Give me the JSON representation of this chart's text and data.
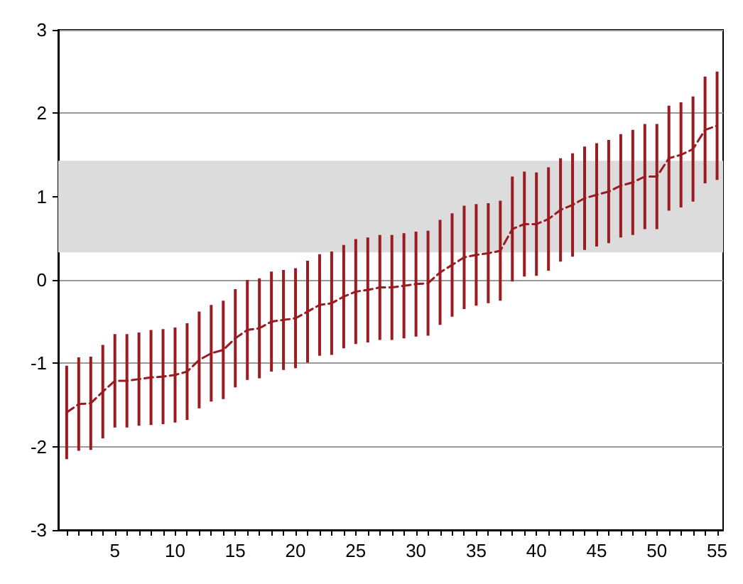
{
  "chart_data": {
    "type": "line",
    "x": [
      1,
      2,
      3,
      4,
      5,
      6,
      7,
      8,
      9,
      10,
      11,
      12,
      13,
      14,
      15,
      16,
      17,
      18,
      19,
      20,
      21,
      22,
      23,
      24,
      25,
      26,
      27,
      28,
      29,
      30,
      31,
      32,
      33,
      34,
      35,
      36,
      37,
      38,
      39,
      40,
      41,
      42,
      43,
      44,
      45,
      46,
      47,
      48,
      49,
      50,
      51,
      52,
      53,
      54,
      55
    ],
    "series": [
      {
        "color": "#9b1b22",
        "values": [
          -1.59,
          -1.49,
          -1.48,
          -1.34,
          -1.21,
          -1.21,
          -1.19,
          -1.17,
          -1.16,
          -1.14,
          -1.1,
          -0.96,
          -0.88,
          -0.84,
          -0.7,
          -0.6,
          -0.58,
          -0.5,
          -0.48,
          -0.46,
          -0.38,
          -0.3,
          -0.28,
          -0.2,
          -0.14,
          -0.12,
          -0.09,
          -0.09,
          -0.07,
          -0.05,
          -0.04,
          0.09,
          0.18,
          0.27,
          0.3,
          0.32,
          0.35,
          0.61,
          0.67,
          0.67,
          0.73,
          0.84,
          0.9,
          0.98,
          1.02,
          1.06,
          1.13,
          1.17,
          1.24,
          1.24,
          1.46,
          1.5,
          1.57,
          1.8,
          1.85
        ],
        "errors": [
          0.56,
          0.56,
          0.56,
          0.56,
          0.56,
          0.56,
          0.56,
          0.57,
          0.57,
          0.57,
          0.58,
          0.58,
          0.58,
          0.59,
          0.59,
          0.6,
          0.6,
          0.6,
          0.6,
          0.6,
          0.61,
          0.61,
          0.62,
          0.62,
          0.63,
          0.63,
          0.63,
          0.63,
          0.63,
          0.63,
          0.63,
          0.63,
          0.62,
          0.62,
          0.61,
          0.6,
          0.6,
          0.63,
          0.63,
          0.62,
          0.62,
          0.62,
          0.62,
          0.62,
          0.62,
          0.62,
          0.62,
          0.63,
          0.63,
          0.63,
          0.63,
          0.63,
          0.63,
          0.64,
          0.65
        ]
      }
    ],
    "line_style": "dashed",
    "marker": "none",
    "grid": "y",
    "bands": [
      {
        "axis": "y",
        "from": 0.33,
        "to": 1.43,
        "color": "#dcdcdc"
      }
    ],
    "xlim": [
      0.3,
      55.5
    ],
    "xticks": [
      {
        "value": 1,
        "label": null
      },
      {
        "value": 2,
        "label": null
      },
      {
        "value": 3,
        "label": null
      },
      {
        "value": 4,
        "label": null
      },
      5,
      {
        "value": 6,
        "label": null
      },
      {
        "value": 7,
        "label": null
      },
      {
        "value": 8,
        "label": null
      },
      {
        "value": 9,
        "label": null
      },
      10,
      {
        "value": 11,
        "label": null
      },
      {
        "value": 12,
        "label": null
      },
      {
        "value": 13,
        "label": null
      },
      {
        "value": 14,
        "label": null
      },
      15,
      {
        "value": 16,
        "label": null
      },
      {
        "value": 17,
        "label": null
      },
      {
        "value": 18,
        "label": null
      },
      {
        "value": 19,
        "label": null
      },
      20,
      {
        "value": 21,
        "label": null
      },
      {
        "value": 22,
        "label": null
      },
      {
        "value": 23,
        "label": null
      },
      {
        "value": 24,
        "label": null
      },
      25,
      {
        "value": 26,
        "label": null
      },
      {
        "value": 27,
        "label": null
      },
      {
        "value": 28,
        "label": null
      },
      {
        "value": 29,
        "label": null
      },
      30,
      {
        "value": 31,
        "label": null
      },
      {
        "value": 32,
        "label": null
      },
      {
        "value": 33,
        "label": null
      },
      {
        "value": 34,
        "label": null
      },
      35,
      {
        "value": 36,
        "label": null
      },
      {
        "value": 37,
        "label": null
      },
      {
        "value": 38,
        "label": null
      },
      {
        "value": 39,
        "label": null
      },
      40,
      {
        "value": 41,
        "label": null
      },
      {
        "value": 42,
        "label": null
      },
      {
        "value": 43,
        "label": null
      },
      {
        "value": 44,
        "label": null
      },
      45,
      {
        "value": 46,
        "label": null
      },
      {
        "value": 47,
        "label": null
      },
      {
        "value": 48,
        "label": null
      },
      {
        "value": 49,
        "label": null
      },
      50,
      {
        "value": 51,
        "label": null
      },
      {
        "value": 52,
        "label": null
      },
      {
        "value": 53,
        "label": null
      },
      {
        "value": 54,
        "label": null
      },
      55
    ],
    "ylim": [
      -3,
      3
    ],
    "yticks": [
      -3,
      -2,
      -1,
      0,
      1,
      2,
      3
    ]
  }
}
